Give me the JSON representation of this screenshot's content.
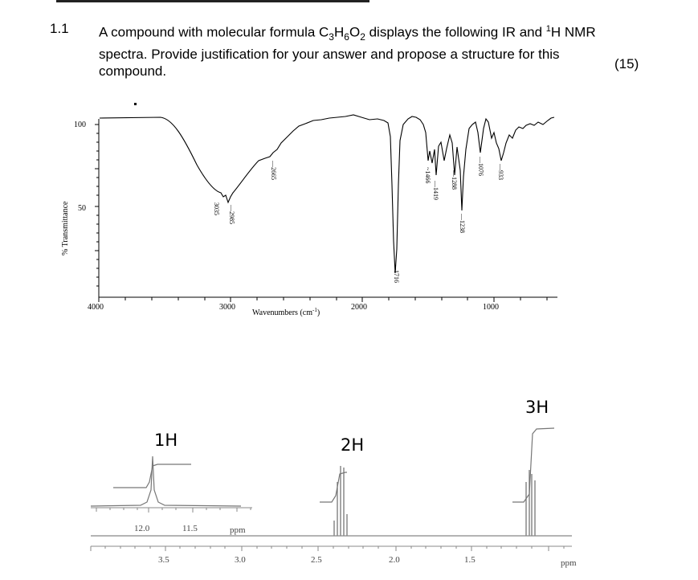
{
  "question": {
    "number": "1.1",
    "text_before_formula": "A compound with molecular formula C",
    "f_sub1": "3",
    "f_mid1": "H",
    "f_sub2": "6",
    "f_mid2": "O",
    "f_sub3": "2",
    "text_mid": " displays the following IR and ",
    "nmr_sup": "1",
    "text_after": "H NMR spectra. Provide justification for your answer and propose a structure for this compound.",
    "marks": "(15)"
  },
  "ir": {
    "ylabel": "% Transmittance",
    "xlabel_main": "Wavenumbers (cm",
    "xlabel_sup": "-1",
    "xlabel_end": ")",
    "y_ticks": [
      "100",
      "50"
    ],
    "x_ticks": [
      "4000",
      "3000",
      "2000",
      "1000"
    ],
    "peaks": [
      "3035",
      "2985",
      "2665",
      "1716",
      "1466",
      "1419",
      "1288",
      "1238",
      "1076",
      "933"
    ]
  },
  "nmr": {
    "integrations": [
      "1H",
      "2H",
      "3H"
    ],
    "axis_ticks": [
      "3.5",
      "3.0",
      "2.5",
      "2.0",
      "1.5"
    ],
    "axis_unit": "ppm",
    "inset_ticks": [
      "12.0",
      "11.5"
    ],
    "inset_unit": "ppm"
  }
}
